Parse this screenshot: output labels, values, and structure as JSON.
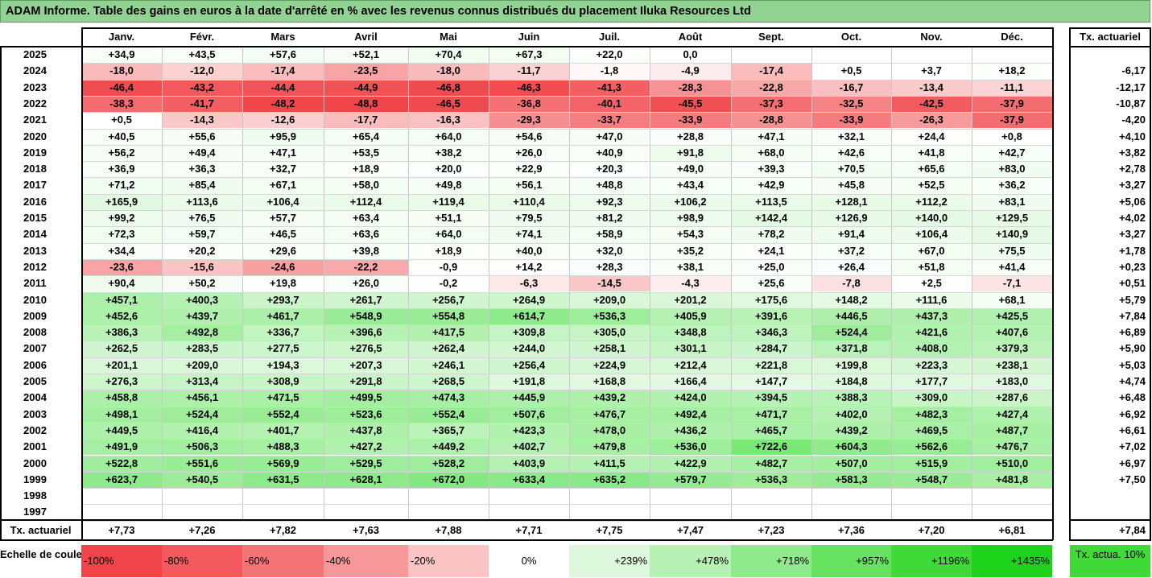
{
  "title": "ADAM Informe. Table des gains en euros à la date d'arrêté en % avec les revenus connus distribués du placement Iluka Resources Ltd",
  "months": [
    "Janv.",
    "Févr.",
    "Mars",
    "Avril",
    "Mai",
    "Juin",
    "Juil.",
    "Août",
    "Sept.",
    "Oct.",
    "Nov.",
    "Déc."
  ],
  "rate_header": "Tx. actuariel",
  "rows": [
    {
      "year": "2025",
      "values": [
        "+34,9",
        "+43,5",
        "+57,6",
        "+52,1",
        "+70,4",
        "+67,3",
        "+22,0",
        "0,0",
        "",
        "",
        "",
        ""
      ],
      "rate": ""
    },
    {
      "year": "2024",
      "values": [
        "-18,0",
        "-12,0",
        "-17,4",
        "-23,5",
        "-18,0",
        "-11,7",
        "-1,8",
        "-4,9",
        "-17,4",
        "+0,5",
        "+3,7",
        "+18,2"
      ],
      "rate": "-6,17"
    },
    {
      "year": "2023",
      "values": [
        "-46,4",
        "-43,2",
        "-44,4",
        "-44,9",
        "-46,8",
        "-46,3",
        "-41,3",
        "-28,3",
        "-22,8",
        "-16,7",
        "-13,4",
        "-11,1"
      ],
      "rate": "-12,17"
    },
    {
      "year": "2022",
      "values": [
        "-38,3",
        "-41,7",
        "-48,2",
        "-48,8",
        "-46,5",
        "-36,8",
        "-40,1",
        "-45,5",
        "-37,3",
        "-32,5",
        "-42,5",
        "-37,9"
      ],
      "rate": "-10,87"
    },
    {
      "year": "2021",
      "values": [
        "+0,5",
        "-14,3",
        "-12,6",
        "-17,7",
        "-16,3",
        "-29,3",
        "-33,7",
        "-33,9",
        "-28,8",
        "-33,9",
        "-26,3",
        "-37,9"
      ],
      "rate": "-4,20"
    },
    {
      "year": "2020",
      "values": [
        "+40,5",
        "+55,6",
        "+95,9",
        "+65,4",
        "+64,0",
        "+54,6",
        "+47,0",
        "+28,8",
        "+47,1",
        "+32,1",
        "+24,4",
        "+0,8"
      ],
      "rate": "+4,10"
    },
    {
      "year": "2019",
      "values": [
        "+56,2",
        "+49,4",
        "+47,1",
        "+53,5",
        "+38,2",
        "+26,0",
        "+40,9",
        "+91,8",
        "+68,0",
        "+42,6",
        "+41,8",
        "+42,7"
      ],
      "rate": "+3,82"
    },
    {
      "year": "2018",
      "values": [
        "+36,9",
        "+36,3",
        "+32,7",
        "+18,9",
        "+20,0",
        "+22,9",
        "+20,3",
        "+49,0",
        "+39,3",
        "+70,5",
        "+65,6",
        "+83,0"
      ],
      "rate": "+2,78"
    },
    {
      "year": "2017",
      "values": [
        "+71,2",
        "+85,4",
        "+67,1",
        "+58,0",
        "+49,8",
        "+56,1",
        "+48,8",
        "+43,4",
        "+42,9",
        "+45,8",
        "+52,5",
        "+36,2"
      ],
      "rate": "+3,27"
    },
    {
      "year": "2016",
      "values": [
        "+165,9",
        "+113,6",
        "+106,4",
        "+112,4",
        "+119,4",
        "+110,4",
        "+92,3",
        "+106,2",
        "+113,5",
        "+128,1",
        "+112,2",
        "+83,1"
      ],
      "rate": "+5,06"
    },
    {
      "year": "2015",
      "values": [
        "+99,2",
        "+76,5",
        "+57,7",
        "+63,4",
        "+51,1",
        "+79,5",
        "+81,2",
        "+98,9",
        "+142,4",
        "+126,9",
        "+140,0",
        "+129,5"
      ],
      "rate": "+4,02"
    },
    {
      "year": "2014",
      "values": [
        "+72,3",
        "+59,7",
        "+46,5",
        "+63,6",
        "+64,0",
        "+74,1",
        "+58,9",
        "+54,3",
        "+78,2",
        "+91,4",
        "+106,4",
        "+140,9"
      ],
      "rate": "+3,27"
    },
    {
      "year": "2013",
      "values": [
        "+34,4",
        "+20,2",
        "+29,6",
        "+39,8",
        "+18,9",
        "+40,0",
        "+32,0",
        "+35,2",
        "+24,1",
        "+37,2",
        "+67,0",
        "+75,5"
      ],
      "rate": "+1,78"
    },
    {
      "year": "2012",
      "values": [
        "-23,6",
        "-15,6",
        "-24,6",
        "-22,2",
        "-0,9",
        "+14,2",
        "+28,3",
        "+38,1",
        "+25,0",
        "+26,4",
        "+51,8",
        "+41,4"
      ],
      "rate": "+0,23"
    },
    {
      "year": "2011",
      "values": [
        "+90,4",
        "+50,2",
        "+19,8",
        "+26,0",
        "-0,2",
        "-6,3",
        "-14,5",
        "-4,3",
        "+25,6",
        "-7,8",
        "+2,5",
        "-7,1"
      ],
      "rate": "+0,51"
    },
    {
      "year": "2010",
      "values": [
        "+457,1",
        "+400,3",
        "+293,7",
        "+261,7",
        "+256,7",
        "+264,9",
        "+209,0",
        "+201,2",
        "+175,6",
        "+148,2",
        "+111,6",
        "+68,1"
      ],
      "rate": "+5,79"
    },
    {
      "year": "2009",
      "values": [
        "+452,6",
        "+439,7",
        "+461,7",
        "+548,9",
        "+554,8",
        "+614,7",
        "+536,3",
        "+405,9",
        "+391,6",
        "+446,5",
        "+437,3",
        "+425,5"
      ],
      "rate": "+7,84"
    },
    {
      "year": "2008",
      "values": [
        "+386,3",
        "+492,8",
        "+336,7",
        "+396,6",
        "+417,5",
        "+309,8",
        "+305,0",
        "+348,8",
        "+346,3",
        "+524,4",
        "+421,6",
        "+407,6"
      ],
      "rate": "+6,89"
    },
    {
      "year": "2007",
      "values": [
        "+262,5",
        "+283,5",
        "+277,5",
        "+276,5",
        "+262,4",
        "+244,0",
        "+258,1",
        "+301,1",
        "+284,7",
        "+371,8",
        "+408,0",
        "+379,3"
      ],
      "rate": "+5,90"
    },
    {
      "year": "2006",
      "values": [
        "+201,1",
        "+209,0",
        "+194,3",
        "+207,3",
        "+246,1",
        "+256,4",
        "+224,9",
        "+212,4",
        "+221,8",
        "+199,8",
        "+223,3",
        "+238,1"
      ],
      "rate": "+5,03"
    },
    {
      "year": "2005",
      "values": [
        "+276,3",
        "+313,4",
        "+308,9",
        "+291,8",
        "+268,5",
        "+191,8",
        "+168,8",
        "+166,4",
        "+147,7",
        "+184,8",
        "+177,7",
        "+183,0"
      ],
      "rate": "+4,74"
    },
    {
      "year": "2004",
      "values": [
        "+458,8",
        "+456,1",
        "+471,5",
        "+499,5",
        "+474,3",
        "+445,9",
        "+439,2",
        "+424,0",
        "+394,5",
        "+388,3",
        "+309,0",
        "+287,6"
      ],
      "rate": "+6,48"
    },
    {
      "year": "2003",
      "values": [
        "+498,1",
        "+524,4",
        "+552,4",
        "+523,6",
        "+552,4",
        "+507,6",
        "+476,7",
        "+492,4",
        "+471,7",
        "+402,0",
        "+482,3",
        "+427,4"
      ],
      "rate": "+6,92"
    },
    {
      "year": "2002",
      "values": [
        "+449,5",
        "+416,4",
        "+401,7",
        "+437,8",
        "+365,7",
        "+423,3",
        "+478,0",
        "+436,2",
        "+465,7",
        "+439,2",
        "+469,5",
        "+487,7"
      ],
      "rate": "+6,61"
    },
    {
      "year": "2001",
      "values": [
        "+491,9",
        "+506,3",
        "+488,3",
        "+427,2",
        "+449,2",
        "+402,7",
        "+479,8",
        "+536,0",
        "+722,6",
        "+604,3",
        "+562,6",
        "+476,7"
      ],
      "rate": "+7,02"
    },
    {
      "year": "2000",
      "values": [
        "+522,8",
        "+551,6",
        "+569,9",
        "+529,5",
        "+528,2",
        "+403,9",
        "+411,5",
        "+422,9",
        "+482,7",
        "+507,0",
        "+515,9",
        "+510,0"
      ],
      "rate": "+6,97"
    },
    {
      "year": "1999",
      "values": [
        "+623,7",
        "+540,5",
        "+631,5",
        "+628,1",
        "+672,0",
        "+633,4",
        "+635,2",
        "+579,7",
        "+536,3",
        "+581,3",
        "+548,7",
        "+481,8"
      ],
      "rate": "+7,50"
    },
    {
      "year": "1998",
      "values": [
        "",
        "",
        "",
        "",
        "",
        "",
        "",
        "",
        "",
        "",
        "",
        ""
      ],
      "rate": ""
    },
    {
      "year": "1997",
      "values": [
        "",
        "",
        "",
        "",
        "",
        "",
        "",
        "",
        "",
        "",
        "",
        ""
      ],
      "rate": ""
    }
  ],
  "footer": {
    "label": "Tx. actuariel",
    "values": [
      "+7,73",
      "+7,26",
      "+7,82",
      "+7,63",
      "+7,88",
      "+7,71",
      "+7,75",
      "+7,47",
      "+7,23",
      "+7,36",
      "+7,20",
      "+6,81"
    ],
    "rate": "+7,84"
  },
  "scale": {
    "label": "Echelle de couleur",
    "items": [
      {
        "text": "-100%",
        "color": "#f0444a",
        "align": "left"
      },
      {
        "text": "-80%",
        "color": "#f25a5f",
        "align": "left"
      },
      {
        "text": "-60%",
        "color": "#f47478",
        "align": "left"
      },
      {
        "text": "-40%",
        "color": "#f7979a",
        "align": "left"
      },
      {
        "text": "-20%",
        "color": "#fbc4c5",
        "align": "left"
      },
      {
        "text": "0%",
        "color": "#ffffff",
        "align": "center"
      },
      {
        "text": "+239%",
        "color": "#ddf8dc",
        "align": "right"
      },
      {
        "text": "+478%",
        "color": "#b7f1b5",
        "align": "right"
      },
      {
        "text": "+718%",
        "color": "#8eea8a",
        "align": "right"
      },
      {
        "text": "+957%",
        "color": "#66e260",
        "align": "right"
      },
      {
        "text": "+1196%",
        "color": "#3fda38",
        "align": "right"
      },
      {
        "text": "+1435%",
        "color": "#1fd21c",
        "align": "right"
      }
    ],
    "ref_label": "Tx. actua. 10%",
    "ref_color": "#3fda38"
  }
}
